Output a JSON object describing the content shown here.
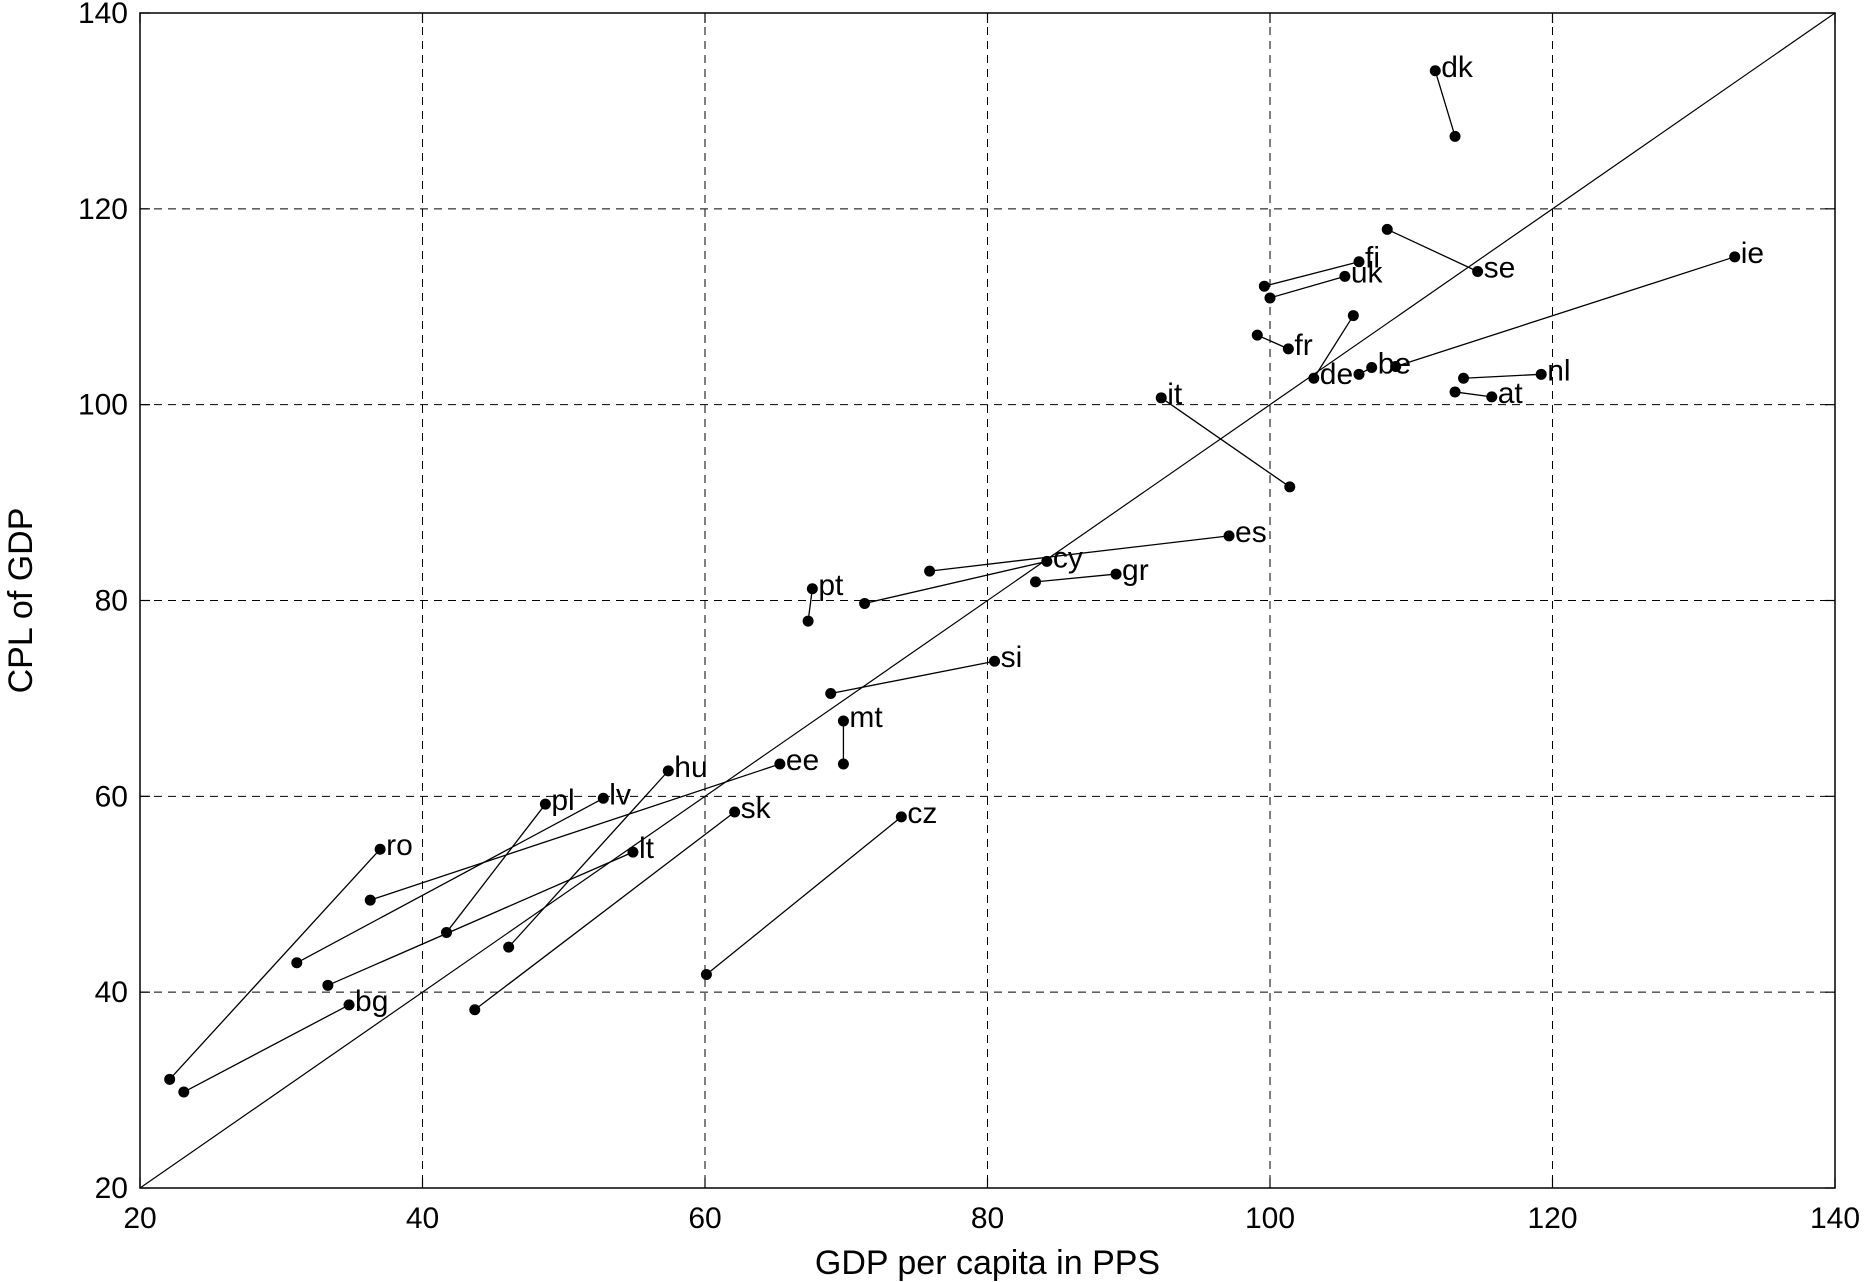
{
  "chart_data": {
    "type": "scatter",
    "xlabel": "GDP per capita in PPS",
    "ylabel": "CPL of GDP",
    "xlim": [
      20,
      140
    ],
    "ylim": [
      20,
      140
    ],
    "xticks": [
      "20",
      "40",
      "60",
      "80",
      "100",
      "120",
      "140"
    ],
    "yticks": [
      "20",
      "40",
      "60",
      "80",
      "100",
      "120",
      "140"
    ],
    "grid": true,
    "reference_line": [
      [
        20,
        20
      ],
      [
        140,
        140
      ]
    ],
    "series": [
      {
        "label": "dk",
        "labeled": [
          111.7,
          134.1
        ],
        "other": [
          113.1,
          127.4
        ]
      },
      {
        "label": "se",
        "labeled": [
          114.7,
          113.6
        ],
        "other": [
          108.3,
          117.9
        ]
      },
      {
        "label": "ie",
        "labeled": [
          132.9,
          115.1
        ],
        "other": [
          108.9,
          103.9
        ]
      },
      {
        "label": "fi",
        "labeled": [
          106.3,
          114.6
        ],
        "other": [
          99.6,
          112.1
        ]
      },
      {
        "label": "uk",
        "labeled": [
          105.3,
          113.1
        ],
        "other": [
          100.0,
          110.9
        ]
      },
      {
        "label": "fr",
        "labeled": [
          101.3,
          105.7
        ],
        "other": [
          99.1,
          107.1
        ]
      },
      {
        "label": "de",
        "labeled": [
          103.1,
          102.7
        ],
        "other": [
          105.9,
          109.1
        ]
      },
      {
        "label": "be",
        "labeled": [
          107.2,
          103.8
        ],
        "other": [
          106.3,
          103.1
        ]
      },
      {
        "label": "nl",
        "labeled": [
          119.2,
          103.1
        ],
        "other": [
          113.7,
          102.7
        ]
      },
      {
        "label": "at",
        "labeled": [
          115.7,
          100.8
        ],
        "other": [
          113.1,
          101.3
        ]
      },
      {
        "label": "it",
        "labeled": [
          92.3,
          100.7
        ],
        "other": [
          101.4,
          91.6
        ]
      },
      {
        "label": "es",
        "labeled": [
          97.1,
          86.6
        ],
        "other": [
          75.9,
          83.0
        ]
      },
      {
        "label": "cy",
        "labeled": [
          84.2,
          84.0
        ],
        "other": [
          71.3,
          79.7
        ]
      },
      {
        "label": "gr",
        "labeled": [
          89.1,
          82.7
        ],
        "other": [
          83.4,
          81.9
        ]
      },
      {
        "label": "pt",
        "labeled": [
          67.6,
          81.2
        ],
        "other": [
          67.3,
          77.9
        ]
      },
      {
        "label": "si",
        "labeled": [
          80.5,
          73.8
        ],
        "other": [
          68.9,
          70.5
        ]
      },
      {
        "label": "mt",
        "labeled": [
          69.8,
          67.7
        ],
        "other": [
          69.8,
          63.3
        ]
      },
      {
        "label": "ee",
        "labeled": [
          65.3,
          63.3
        ],
        "other": [
          36.3,
          49.4
        ]
      },
      {
        "label": "hu",
        "labeled": [
          57.4,
          62.6
        ],
        "other": [
          46.1,
          44.6
        ]
      },
      {
        "label": "pl",
        "labeled": [
          48.7,
          59.2
        ],
        "other": [
          41.7,
          46.1
        ]
      },
      {
        "label": "lv",
        "labeled": [
          52.8,
          59.8
        ],
        "other": [
          31.1,
          43.0
        ]
      },
      {
        "label": "sk",
        "labeled": [
          62.1,
          58.4
        ],
        "other": [
          43.7,
          38.2
        ]
      },
      {
        "label": "cz",
        "labeled": [
          73.9,
          57.9
        ],
        "other": [
          60.1,
          41.8
        ]
      },
      {
        "label": "lt",
        "labeled": [
          54.9,
          54.3
        ],
        "other": [
          33.3,
          40.7
        ]
      },
      {
        "label": "ro",
        "labeled": [
          37.0,
          54.6
        ],
        "other": [
          22.1,
          31.1
        ]
      },
      {
        "label": "bg",
        "labeled": [
          34.8,
          38.7
        ],
        "other": [
          23.1,
          29.8
        ]
      }
    ]
  }
}
